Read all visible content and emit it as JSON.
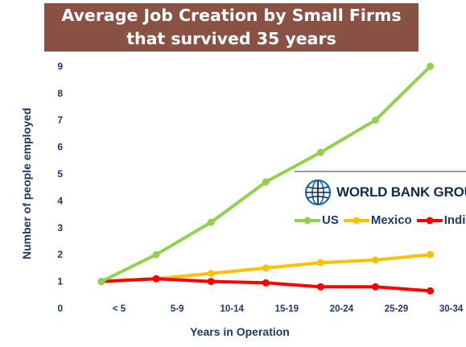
{
  "title": {
    "line1": "Average Job Creation by Small Firms",
    "line2": "that survived 35 years"
  },
  "logo": {
    "text": "WORLD BANK GROUP",
    "icon": "world-bank-globe-icon"
  },
  "colors": {
    "title_bg": "#8a5145",
    "axis_text": "#1f3864",
    "US": "#92d050",
    "Mexico": "#ffc000",
    "India": "#ff0000"
  },
  "chart_data": {
    "type": "line",
    "xlabel": "Years in Operation",
    "ylabel": "Number of people employed",
    "categories": [
      "< 5",
      "5-9",
      "10-14",
      "15-19",
      "20-24",
      "25-29",
      "30-34"
    ],
    "yticks": [
      "0",
      "1",
      "2",
      "3",
      "4",
      "5",
      "6",
      "7",
      "8",
      "9"
    ],
    "ylim": [
      0,
      9.5
    ],
    "grid": false,
    "legend_position": "right",
    "series": [
      {
        "name": "US",
        "values": [
          1.0,
          2.0,
          3.2,
          4.7,
          5.8,
          7.0,
          9.0
        ]
      },
      {
        "name": "Mexico",
        "values": [
          1.0,
          1.1,
          1.3,
          1.5,
          1.7,
          1.8,
          2.0
        ]
      },
      {
        "name": "India",
        "values": [
          1.0,
          1.1,
          1.0,
          0.95,
          0.8,
          0.8,
          0.65
        ]
      }
    ]
  }
}
